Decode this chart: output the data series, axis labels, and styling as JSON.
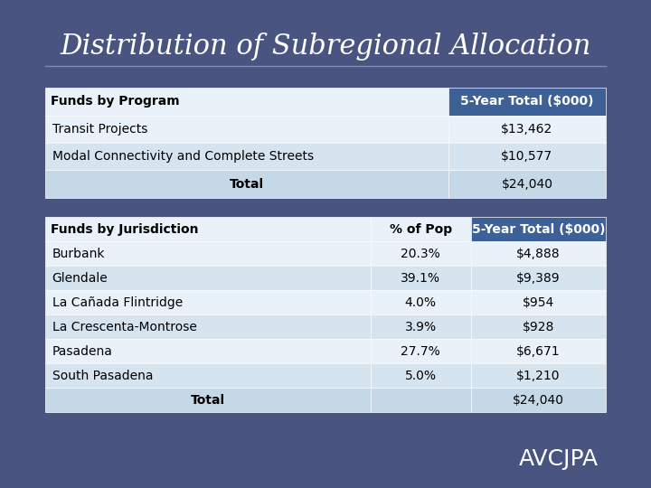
{
  "title": "Distribution of Subregional Allocation",
  "bg_color": "#4a5480",
  "table1_header": [
    "Funds by Program",
    "5-Year Total ($000)"
  ],
  "table1_rows": [
    [
      "Transit Projects",
      "$13,462"
    ],
    [
      "Modal Connectivity and Complete Streets",
      "$10,577"
    ],
    [
      "Total",
      "$24,040"
    ]
  ],
  "table2_header": [
    "Funds by Jurisdiction",
    "% of Pop",
    "5-Year Total ($000)"
  ],
  "table2_rows": [
    [
      "Burbank",
      "20.3%",
      "$4,888"
    ],
    [
      "Glendale",
      "39.1%",
      "$9,389"
    ],
    [
      "La Cañada Flintridge",
      "4.0%",
      "$954"
    ],
    [
      "La Crescenta-Montrose",
      "3.9%",
      "$928"
    ],
    [
      "Pasadena",
      "27.7%",
      "$6,671"
    ],
    [
      "South Pasadena",
      "5.0%",
      "$1,210"
    ],
    [
      "Total",
      "",
      "$24,040"
    ]
  ],
  "header_bg": "#3d6096",
  "header_text": "#ffffff",
  "row_light": "#d6e4f0",
  "row_lighter": "#e8f2f8",
  "total_row_bg": "#c5d8e8",
  "table_border": "#ffffff",
  "footer_text": "AVCJPA",
  "footer_color": "#ffffff"
}
